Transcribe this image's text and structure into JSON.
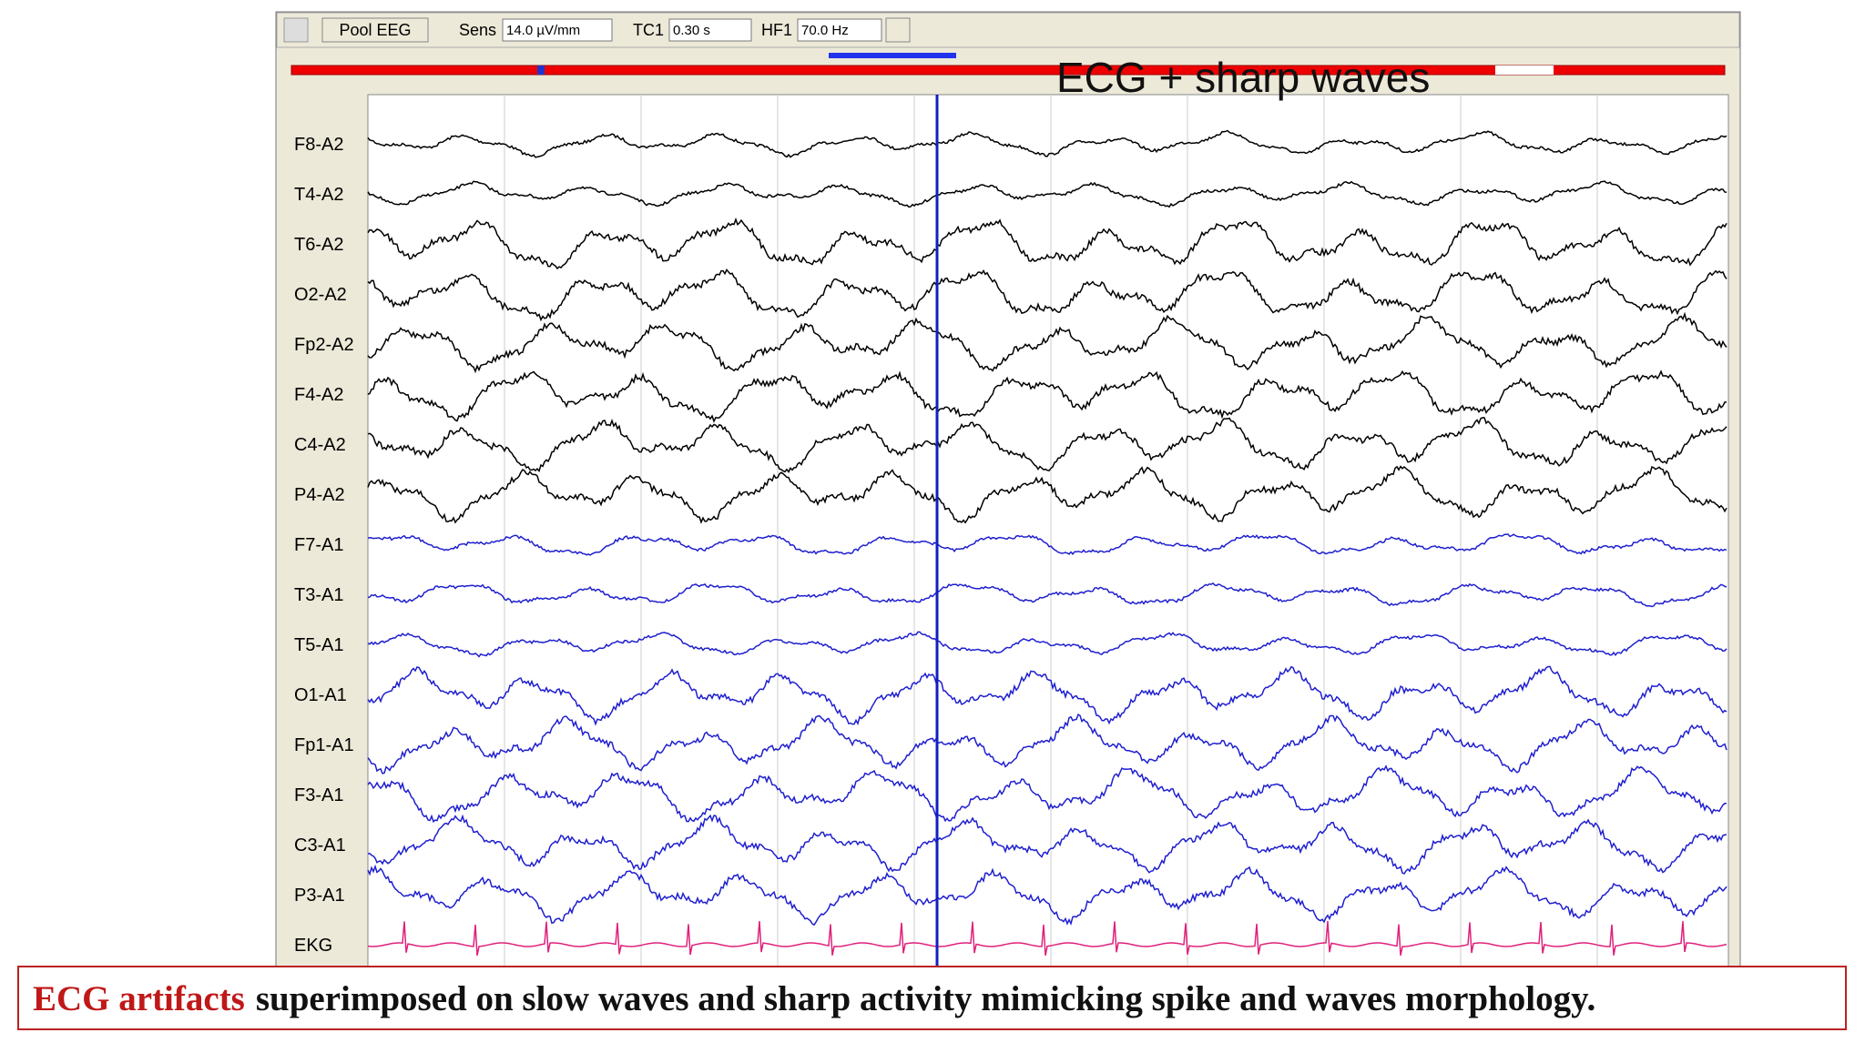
{
  "toolbar": {
    "button": "Pool EEG",
    "sens_label": "Sens",
    "sens_value": "14.0 µV/mm",
    "tc_label": "TC1",
    "tc_value": "0.30 s",
    "hf_label": "HF1",
    "hf_value": "70.0 Hz"
  },
  "annotation": "ECG +  sharp waves",
  "channels": [
    {
      "label": "F8-A2",
      "color": "#000000"
    },
    {
      "label": "T4-A2",
      "color": "#000000"
    },
    {
      "label": "T6-A2",
      "color": "#000000"
    },
    {
      "label": "O2-A2",
      "color": "#000000"
    },
    {
      "label": "Fp2-A2",
      "color": "#000000"
    },
    {
      "label": "F4-A2",
      "color": "#000000"
    },
    {
      "label": "C4-A2",
      "color": "#000000"
    },
    {
      "label": "P4-A2",
      "color": "#000000"
    },
    {
      "label": "F7-A1",
      "color": "#1f1fd0"
    },
    {
      "label": "T3-A1",
      "color": "#1f1fd0"
    },
    {
      "label": "T5-A1",
      "color": "#1f1fd0"
    },
    {
      "label": "O1-A1",
      "color": "#1f1fd0"
    },
    {
      "label": "Fp1-A1",
      "color": "#1f1fd0"
    },
    {
      "label": "F3-A1",
      "color": "#1f1fd0"
    },
    {
      "label": "C3-A1",
      "color": "#1f1fd0"
    },
    {
      "label": "P3-A1",
      "color": "#1f1fd0"
    },
    {
      "label": "EKG",
      "color": "#e0207a"
    }
  ],
  "caption": {
    "highlight": "ECG artifacts",
    "text": "superimposed on slow waves and sharp activity mimicking spike and waves morphology."
  }
}
